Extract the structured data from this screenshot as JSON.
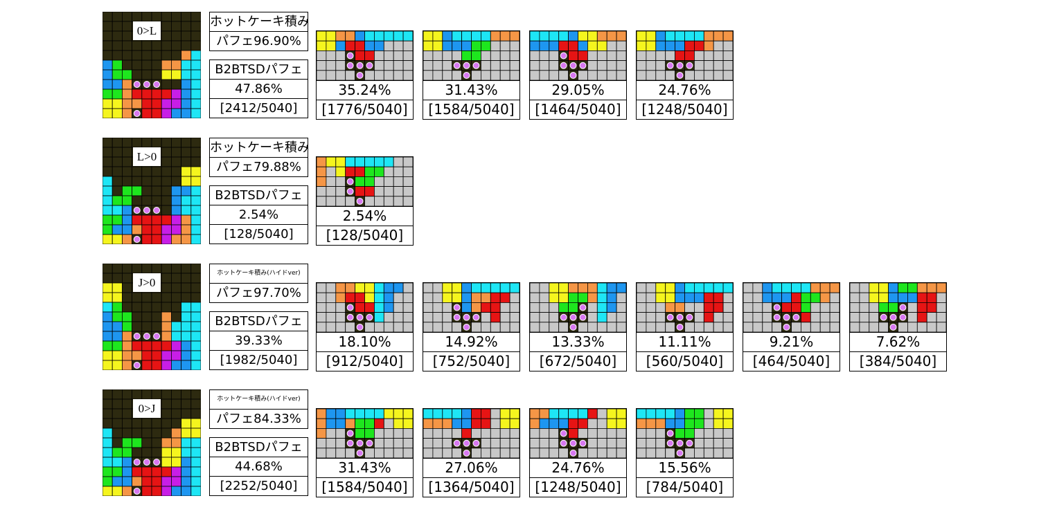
{
  "colors": {
    "background_dark": "#2d2a10",
    "empty": "#c8c8c8",
    "grid_line": "#000000",
    "I": "#1ee6f5",
    "J": "#1e96f0",
    "L": "#f59646",
    "O": "#f5f51e",
    "S": "#1ee61e",
    "Z": "#e61414",
    "T": "#c81ee6",
    "marker": "#d878f0"
  },
  "rows": [
    {
      "tag": "0>L",
      "method": "ホットケーキ積み",
      "method_small": false,
      "perfect": "パフェ96.90%",
      "b2b_label": "B2BTSDパフェ",
      "b2b_percent": "47.86%",
      "b2b_count": "[2412/5040]",
      "board": [
        "..........",
        "..........",
        "..........",
        "..........",
        "........LI",
        "JS....LLII",
        "JSS...OOII",
        "JJLrrr..JI",
        "SSLZZZZTJI",
        "OOLLZZTTJI",
        "OOLrZZTJJI"
      ],
      "cards": [
        {
          "percent": "35.24%",
          "count": "[1776/5040]",
          "grid": [
            "OOLLJIIIII",
            "OOJZZJJ...",
            "...rZZ....",
            "...rrr....",
            "....r....."
          ]
        },
        {
          "percent": "31.43%",
          "count": "[1584/5040]",
          "grid": [
            "OOJIIIILLL",
            "OOJJJSS...",
            "....SS....",
            "...rrr....",
            "....r....."
          ]
        },
        {
          "percent": "29.05%",
          "count": "[1464/5040]",
          "grid": [
            "IIIIJOOLLL",
            "JJJZZJOO..",
            "...rZZ....",
            "...rrr....",
            "....r....."
          ]
        },
        {
          "percent": "24.76%",
          "count": "[1248/5040]",
          "grid": [
            "OOJIIIILLL",
            "OOJJJZZL..",
            "....ZZ....",
            "...rrr....",
            "....r....."
          ]
        }
      ]
    },
    {
      "tag": "L>0",
      "method": "ホットケーキ積み",
      "method_small": false,
      "perfect": "パフェ79.88%",
      "b2b_label": "B2BTSDパフェ",
      "b2b_percent": "2.54%",
      "b2b_count": "[128/5040]",
      "board": [
        "..........",
        "..........",
        "..........",
        "........OO",
        "I.......OO",
        "I.SS...JJI",
        "ISS....JII",
        "IIJrrr.JII",
        "SSJZZZZTLI",
        "SJJLZZTTLI",
        "OOLrZZTLLI"
      ],
      "cards": [
        {
          "percent": "2.54%",
          "count": "[128/5040]",
          "grid": [
            "LOOIIIII..",
            "L.OZZSS...",
            "L..rSS....",
            "...rZZ....",
            "....r....."
          ]
        }
      ]
    },
    {
      "tag": "J>0",
      "method": "ホットケーキ積み(ハイドver)",
      "method_small": true,
      "perfect": "パフェ97.70%",
      "b2b_label": "B2BTSDパフェ",
      "b2b_percent": "39.33%",
      "b2b_count": "[1982/5040]",
      "board": [
        "..........",
        "..........",
        "OO........",
        "OO........",
        "IS......II",
        "JSS...L.II",
        "JJS...LIII",
        "JJLrrrLIII",
        "SSLZZZZTJI",
        "OOLLZZTTJI",
        "OOLrZZTJJI"
      ],
      "cards": [
        {
          "percent": "18.10%",
          "count": "[912/5040]",
          "grid": [
            "..LLOOIJJ.",
            "..LZZOIJ..",
            "...rZZIJ..",
            "...rrrI...",
            "....r....."
          ]
        },
        {
          "percent": "14.92%",
          "count": "[752/5040]",
          "grid": [
            "..OOJIIIII",
            "..OOJLLZZ.",
            "...rJLZZ..",
            "...rrr.Z..",
            "....r....."
          ]
        },
        {
          "percent": "13.33%",
          "count": "[672/5040]",
          "grid": [
            "..OOLLLIJJ",
            "..OOSSLIJ.",
            "...SSr.IJ.",
            "...rrr.I..",
            "....r....."
          ]
        },
        {
          "percent": "11.11%",
          "count": "[560/5040]",
          "grid": [
            "..OOJIIIII",
            "..OOJJJZZ.",
            "...LL..ZZ.",
            "...rrr.Z..",
            "....r....."
          ]
        },
        {
          "percent": "9.21%",
          "count": "[464/5040]",
          "grid": [
            "..JIIIILLL",
            "..JJJZSSL.",
            "...rZZS...",
            "...rrrZ...",
            "....r....."
          ]
        },
        {
          "percent": "7.62%",
          "count": "[384/5040]",
          "grid": [
            "..OOJSSLLL",
            "..OOJJJZZ.",
            "...SSr.ZZ.",
            "...rrr.Z..",
            "....r....."
          ]
        }
      ]
    },
    {
      "tag": "0>J",
      "method": "ホットケーキ積み(ハイドver)",
      "method_small": true,
      "perfect": "パフェ84.33%",
      "b2b_label": "B2BTSDパフェ",
      "b2b_percent": "44.68%",
      "b2b_count": "[2252/5040]",
      "board": [
        "..........",
        "..........",
        "..........",
        "........OO",
        "I......LOO",
        "I.SS..LLII",
        "ISS...OOII",
        "IIJrrrOOJI",
        "SSJZZZZTJI",
        "SJJLZZTTJI",
        "OOLrZZTJJI"
      ],
      "cards": [
        {
          "percent": "31.43%",
          "count": "[1584/5040]",
          "grid": [
            "LJJIIIIOOO",
            "LJJLSSZ.OO",
            "L..rSS....",
            "...rrr....",
            "....r....."
          ]
        },
        {
          "percent": "27.06%",
          "count": "[1364/5040]",
          "grid": [
            "IIIIJZZ.OO",
            "LLLJJZZ.OO",
            "....Z.....",
            "...rrr....",
            "....r....."
          ]
        },
        {
          "percent": "24.76%",
          "count": "[1248/5040]",
          "grid": [
            "LLIIIIZ.OO",
            "LJJJZZ..OO",
            "...rZ.....",
            "...rrr....",
            "....r....."
          ]
        },
        {
          "percent": "15.56%",
          "count": "[784/5040]",
          "grid": [
            "IIIIJSS.OO",
            "LLLJJSS.OO",
            "...rSS....",
            "...rrr....",
            "....r....."
          ]
        }
      ]
    }
  ]
}
